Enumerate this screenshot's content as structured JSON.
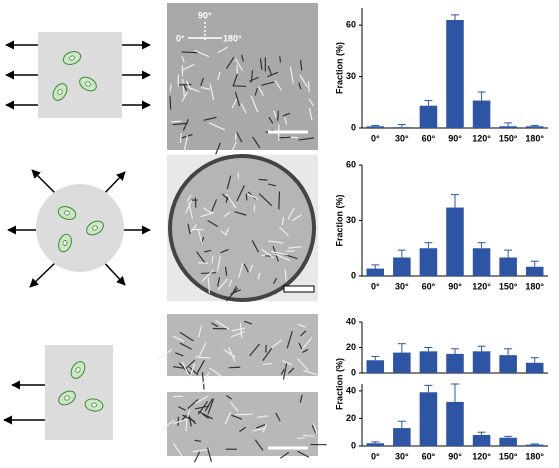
{
  "micrograph_labels": [
    "90°",
    "0°",
    "180°"
  ],
  "chart_data": [
    {
      "type": "bar",
      "ylabel": "Fraction (%)",
      "categories": [
        "0°",
        "30°",
        "60°",
        "90°",
        "120°",
        "150°",
        "180°"
      ],
      "values": [
        1,
        0.5,
        13,
        63,
        16,
        1,
        1
      ],
      "errors": [
        0.5,
        1.5,
        3,
        3,
        5,
        2,
        0.5
      ],
      "color": "#2e55a4",
      "ylim": [
        0,
        70
      ],
      "yticks": [
        0,
        30,
        60
      ]
    },
    {
      "type": "bar",
      "ylabel": "Fraction (%)",
      "categories": [
        "0°",
        "30°",
        "60°",
        "90°",
        "120°",
        "150°",
        "180°"
      ],
      "values": [
        4,
        10,
        15,
        37,
        15,
        10,
        5
      ],
      "errors": [
        2,
        4,
        3,
        7,
        3,
        4,
        3
      ],
      "color": "#2e55a4",
      "ylim": [
        0,
        60
      ],
      "yticks": [
        0,
        30,
        60
      ]
    },
    {
      "type": "bar",
      "values": [
        10,
        16,
        17,
        15,
        17,
        14,
        8
      ],
      "errors": [
        3,
        7,
        3,
        4,
        4,
        5,
        4
      ],
      "color": "#2e55a4",
      "ylim": [
        0,
        40
      ],
      "yticks": [
        0,
        20,
        40
      ]
    },
    {
      "type": "bar",
      "ylabel": "Fraction (%)",
      "categories": [
        "0°",
        "30°",
        "60°",
        "90°",
        "120°",
        "150°",
        "180°"
      ],
      "values": [
        2,
        13,
        39,
        32,
        8,
        6,
        1
      ],
      "errors": [
        1,
        5,
        5,
        13,
        2,
        1,
        0.5
      ],
      "color": "#2e55a4",
      "ylim": [
        0,
        45
      ],
      "yticks": [
        0,
        20,
        40
      ]
    }
  ]
}
